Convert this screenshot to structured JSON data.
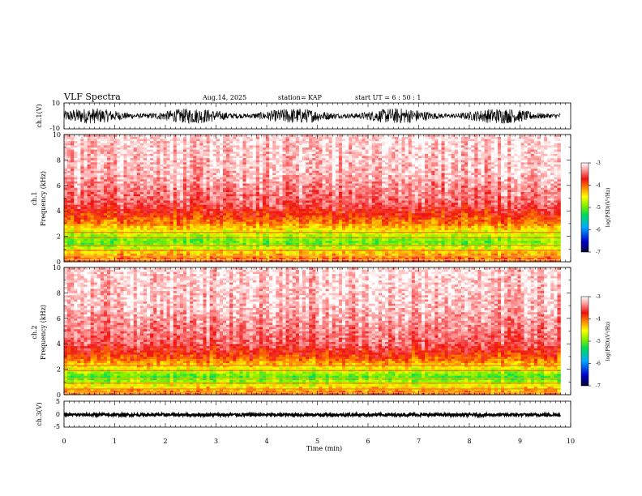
{
  "header": {
    "title": "VLF Spectra",
    "date": "Aug.14, 2025",
    "station": "station= KAP",
    "start": "start  UT  =   6  : 50 : 1"
  },
  "chart_data": [
    {
      "type": "line",
      "id": "ch1-waveform",
      "ylabel": "ch.1(V)",
      "ylim": [
        -10,
        10
      ],
      "yticks": [
        "10",
        "-10"
      ],
      "xlim": [
        0,
        10
      ],
      "data_end_min": 9.8,
      "description_series": {
        "name": "ch.1 voltage",
        "approx_range": [
          -6,
          6
        ]
      }
    },
    {
      "type": "heatmap",
      "id": "ch1-spectrogram",
      "ylabel": "Frequency (kHz)",
      "channel_label": "ch.1",
      "ylim": [
        0,
        10
      ],
      "yticks": [
        "0",
        "2",
        "4",
        "6",
        "8",
        "10"
      ],
      "xlim": [
        0,
        10
      ],
      "data_end_min": 9.8,
      "colorbar": {
        "label": "log(PSD)(V²/Hz)",
        "range": [
          -7,
          -3
        ],
        "ticks": [
          "-3",
          "-4",
          "-5",
          "-6",
          "-7"
        ]
      },
      "band_profile": [
        {
          "f_khz": 0.2,
          "log_psd": -4.0
        },
        {
          "f_khz": 0.8,
          "log_psd": -4.4
        },
        {
          "f_khz": 1.5,
          "log_psd": -5.0
        },
        {
          "f_khz": 2.2,
          "log_psd": -4.7
        },
        {
          "f_khz": 3.0,
          "log_psd": -4.1
        },
        {
          "f_khz": 4.5,
          "log_psd": -3.5
        },
        {
          "f_khz": 7.0,
          "log_psd": -3.2
        },
        {
          "f_khz": 10.0,
          "log_psd": -3.1
        }
      ]
    },
    {
      "type": "heatmap",
      "id": "ch2-spectrogram",
      "ylabel": "Frequency (kHz)",
      "channel_label": "ch.2",
      "ylim": [
        0,
        10
      ],
      "yticks": [
        "0",
        "2",
        "4",
        "6",
        "8",
        "10"
      ],
      "xlim": [
        0,
        10
      ],
      "data_end_min": 9.8,
      "colorbar": {
        "label": "log(PSD)(V²/Hz)",
        "range": [
          -7,
          -3
        ],
        "ticks": [
          "-3",
          "-4",
          "-5",
          "-6",
          "-7"
        ]
      },
      "band_profile": [
        {
          "f_khz": 0.2,
          "log_psd": -4.1
        },
        {
          "f_khz": 0.8,
          "log_psd": -4.6
        },
        {
          "f_khz": 1.4,
          "log_psd": -5.1
        },
        {
          "f_khz": 2.0,
          "log_psd": -4.6
        },
        {
          "f_khz": 2.8,
          "log_psd": -4.0
        },
        {
          "f_khz": 4.0,
          "log_psd": -3.5
        },
        {
          "f_khz": 7.0,
          "log_psd": -3.2
        },
        {
          "f_khz": 10.0,
          "log_psd": -3.1
        }
      ]
    },
    {
      "type": "line",
      "id": "ch3-waveform",
      "ylabel": "ch.3(V)",
      "ylim": [
        -5,
        5
      ],
      "yticks": [
        "5",
        "0",
        "-5"
      ],
      "xlim": [
        0,
        10
      ],
      "data_end_min": 9.8,
      "description_series": {
        "name": "ch.3 voltage",
        "approx_range": [
          -0.8,
          0.3
        ]
      }
    }
  ],
  "xaxis": {
    "label": "Time (min)",
    "ticks": [
      "0",
      "1",
      "2",
      "3",
      "4",
      "5",
      "6",
      "7",
      "8",
      "9",
      "10"
    ]
  }
}
